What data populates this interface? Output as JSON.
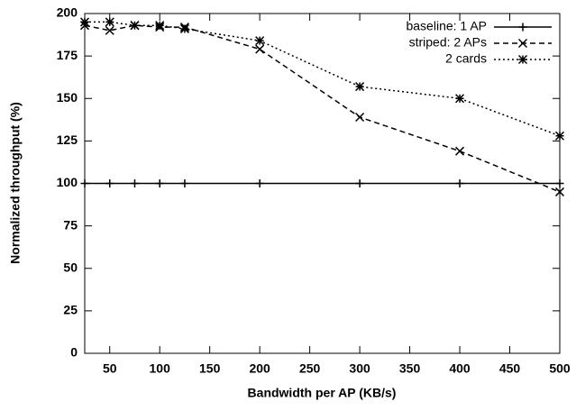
{
  "chart_data": {
    "type": "line",
    "xlabel": "Bandwidth per AP (KB/s)",
    "ylabel": "Normalized throughput (%)",
    "x": [
      25,
      50,
      75,
      100,
      125,
      200,
      300,
      400,
      500
    ],
    "xlim": [
      25,
      500
    ],
    "xticks": [
      50,
      100,
      150,
      200,
      250,
      300,
      350,
      400,
      450,
      500
    ],
    "ylim": [
      0,
      200
    ],
    "yticks": [
      0,
      25,
      50,
      75,
      100,
      125,
      150,
      175,
      200
    ],
    "legend": "top-right",
    "series": [
      {
        "name": "baseline: 1 AP",
        "color": "#000000",
        "dash": "none",
        "marker": "plus",
        "values": [
          100,
          100,
          100,
          100,
          100,
          100,
          100,
          100,
          100
        ]
      },
      {
        "name": "striped: 2 APs",
        "color": "#000000",
        "dash": "6,4",
        "marker": "cross",
        "values": [
          193,
          190,
          193,
          192,
          192,
          179,
          139,
          119,
          95
        ]
      },
      {
        "name": "2 cards",
        "color": "#000000",
        "dash": "2,3",
        "marker": "star",
        "values": [
          195,
          195,
          193,
          193,
          191,
          184,
          157,
          150,
          128
        ]
      }
    ]
  }
}
